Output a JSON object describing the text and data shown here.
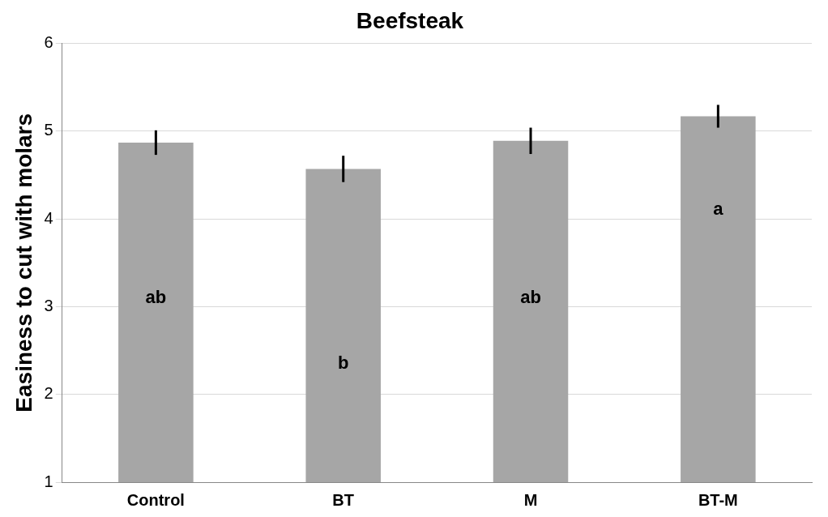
{
  "chart_data": {
    "type": "bar",
    "title": "Beefsteak",
    "ylabel": "Easiness to cut with molars",
    "categories": [
      "Control",
      "BT",
      "M",
      "BT-M"
    ],
    "values": [
      4.87,
      4.57,
      4.89,
      5.17
    ],
    "errors": [
      0.14,
      0.15,
      0.15,
      0.13
    ],
    "color": "#a6a6a6",
    "ylim": [
      1,
      6
    ],
    "yticks": [
      1,
      2,
      3,
      4,
      5,
      6
    ],
    "grid": "y",
    "annotations": [
      "ab",
      "b",
      "ab",
      "a"
    ]
  }
}
